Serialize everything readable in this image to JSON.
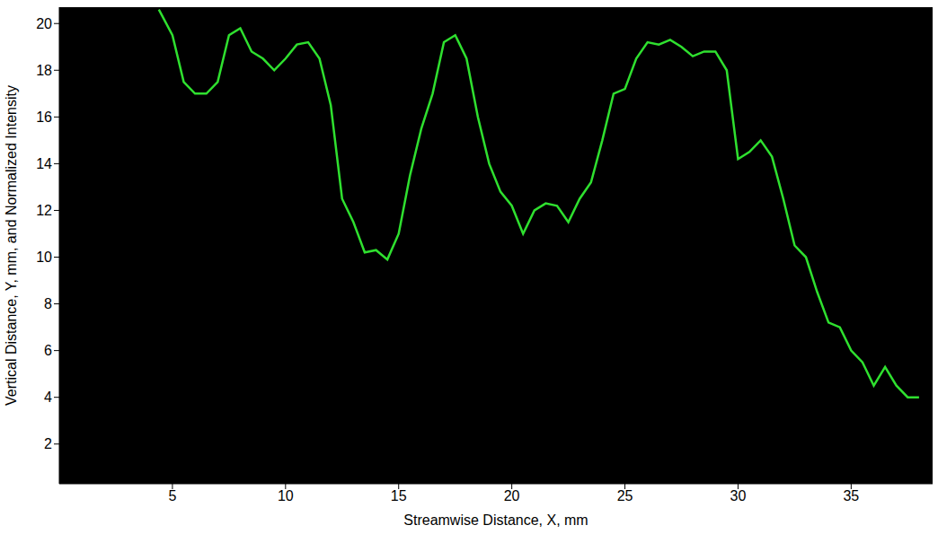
{
  "chart_data": {
    "type": "line",
    "x_label": "Streamwise Distance, X, mm",
    "y_label": "Vertical Distance, Y, mm, and Normalized Intensity",
    "xlim": [
      0,
      38.6
    ],
    "xticks": [
      5,
      10,
      15,
      20,
      25,
      30,
      35
    ],
    "ylim": [
      0.3,
      20.7
    ],
    "yticks": [
      2,
      4,
      6,
      8,
      10,
      12,
      14,
      16,
      18,
      20
    ],
    "grid": false,
    "series": [
      {
        "name": "Normalized Intensity",
        "color": "#2fe02f",
        "x": [
          4.4,
          5,
          5.5,
          6,
          6.5,
          7,
          7.5,
          8,
          8.5,
          9,
          9.5,
          10,
          10.5,
          11,
          11.5,
          12,
          12.5,
          13,
          13.5,
          14,
          14.5,
          15,
          15.5,
          16,
          16.5,
          17,
          17.5,
          18,
          18.5,
          19,
          19.5,
          20,
          20.5,
          21,
          21.5,
          22,
          22.5,
          23,
          23.5,
          24,
          24.5,
          25,
          25.5,
          26,
          26.5,
          27,
          27.5,
          28,
          28.5,
          29,
          29.5,
          30,
          30.5,
          31,
          31.5,
          32,
          32.5,
          33,
          33.5,
          34,
          34.5,
          35,
          35.5,
          36,
          36.5,
          37,
          37.5,
          38
        ],
        "values": [
          20.6,
          19.5,
          17.5,
          17,
          17,
          17.5,
          19.5,
          19.8,
          18.8,
          18.5,
          18,
          18.5,
          19.1,
          19.2,
          18.5,
          16.5,
          12.5,
          11.5,
          10.2,
          10.3,
          9.9,
          11,
          13.5,
          15.5,
          17,
          19.2,
          19.5,
          18.5,
          16,
          14,
          12.8,
          12.2,
          11,
          12,
          12.3,
          12.2,
          11.5,
          12.5,
          13.2,
          15,
          17,
          17.2,
          18.5,
          19.2,
          19.1,
          19.3,
          19,
          18.6,
          18.8,
          18.8,
          18,
          14.2,
          14.5,
          15,
          14.3,
          12.5,
          10.5,
          10,
          8.5,
          7.2,
          7,
          6,
          5.5,
          4.5,
          5.3,
          4.5,
          4,
          4
        ]
      }
    ]
  }
}
